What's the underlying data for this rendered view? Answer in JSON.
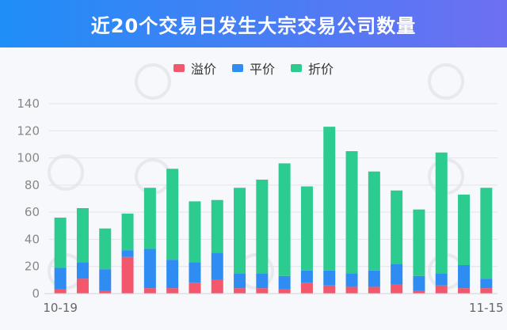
{
  "header": {
    "title": "近20个交易日发生大宗交易公司数量"
  },
  "colors": {
    "premium": "#f2576b",
    "par": "#2f8cf2",
    "discount": "#2ccb8f",
    "grid": "#e2e4ea"
  },
  "chart_data": {
    "type": "bar",
    "stacked": true,
    "title": "近20个交易日发生大宗交易公司数量",
    "legend_position": "top-center",
    "grid": true,
    "ylim": [
      0,
      140
    ],
    "yticks": [
      0,
      20,
      40,
      60,
      80,
      100,
      120,
      140
    ],
    "x_start_label": "10-19",
    "x_end_label": "11-15",
    "series": [
      {
        "name": "溢价",
        "color": "#f2576b",
        "values": [
          3,
          11,
          2,
          27,
          4,
          4,
          8,
          10,
          4,
          4,
          3,
          8,
          6,
          5,
          5,
          7,
          2,
          6,
          4,
          4
        ]
      },
      {
        "name": "平价",
        "color": "#2f8cf2",
        "values": [
          16,
          12,
          16,
          5,
          29,
          21,
          15,
          20,
          11,
          11,
          10,
          9,
          11,
          10,
          12,
          15,
          11,
          9,
          17,
          7
        ]
      },
      {
        "name": "折价",
        "color": "#2ccb8f",
        "values": [
          37,
          40,
          30,
          27,
          45,
          67,
          45,
          39,
          63,
          69,
          83,
          62,
          106,
          90,
          73,
          54,
          49,
          89,
          52,
          67
        ]
      }
    ]
  }
}
